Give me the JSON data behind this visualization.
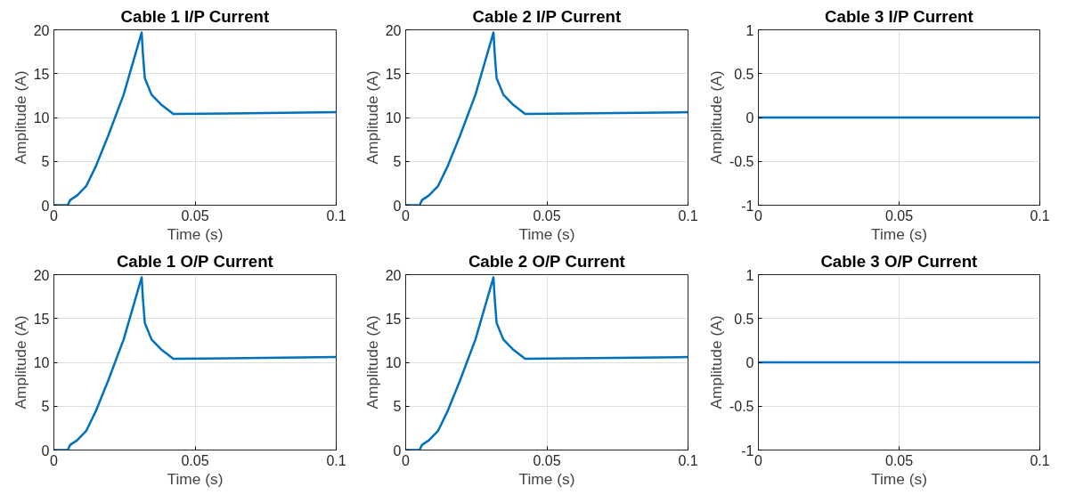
{
  "chart_data": [
    {
      "type": "line",
      "title": "Cable 1 I/P Current",
      "xlabel": "Time (s)",
      "ylabel": "Amplitude (A)",
      "x": [
        0,
        0.0049,
        0.0058,
        0.0082,
        0.0115,
        0.0148,
        0.0192,
        0.0247,
        0.0311,
        0.0315,
        0.0322,
        0.0346,
        0.0379,
        0.0423,
        0.1
      ],
      "series": [
        {
          "color": "#0072bd",
          "values": [
            0,
            0,
            0.6,
            1.1,
            2.2,
            4.4,
            7.9,
            12.6,
            19.7,
            17.4,
            14.5,
            12.6,
            11.5,
            10.4,
            10.6
          ]
        }
      ],
      "xlim": [
        0,
        0.1
      ],
      "xticks": [
        0,
        0.05,
        0.1
      ],
      "ylim": [
        0,
        20
      ],
      "yticks": [
        0,
        5,
        10,
        15,
        20
      ],
      "grid": true
    },
    {
      "type": "line",
      "title": "Cable 2 I/P Current",
      "xlabel": "Time (s)",
      "ylabel": "Amplitude (A)",
      "x": [
        0,
        0.0049,
        0.0058,
        0.0082,
        0.0115,
        0.0148,
        0.0192,
        0.0247,
        0.0311,
        0.0315,
        0.0322,
        0.0346,
        0.0379,
        0.0423,
        0.1
      ],
      "series": [
        {
          "color": "#0072bd",
          "values": [
            0,
            0,
            0.6,
            1.1,
            2.2,
            4.4,
            7.9,
            12.6,
            19.7,
            17.4,
            14.5,
            12.6,
            11.5,
            10.4,
            10.6
          ]
        }
      ],
      "xlim": [
        0,
        0.1
      ],
      "xticks": [
        0,
        0.05,
        0.1
      ],
      "ylim": [
        0,
        20
      ],
      "yticks": [
        0,
        5,
        10,
        15,
        20
      ],
      "grid": true
    },
    {
      "type": "line",
      "title": "Cable 3 I/P Current",
      "xlabel": "Time (s)",
      "ylabel": "Amplitude (A)",
      "x": [
        0,
        0.1
      ],
      "series": [
        {
          "color": "#0072bd",
          "values": [
            0,
            0
          ]
        }
      ],
      "xlim": [
        0,
        0.1
      ],
      "xticks": [
        0,
        0.05,
        0.1
      ],
      "ylim": [
        -1,
        1
      ],
      "yticks": [
        -1,
        -0.5,
        0,
        0.5,
        1
      ],
      "grid": true
    },
    {
      "type": "line",
      "title": "Cable 1 O/P Current",
      "xlabel": "Time (s)",
      "ylabel": "Amplitude (A)",
      "x": [
        0,
        0.0049,
        0.0058,
        0.0082,
        0.0115,
        0.0148,
        0.0192,
        0.0247,
        0.0311,
        0.0315,
        0.0322,
        0.0346,
        0.0379,
        0.0423,
        0.1
      ],
      "series": [
        {
          "color": "#0072bd",
          "values": [
            0,
            0,
            0.6,
            1.1,
            2.2,
            4.4,
            7.9,
            12.6,
            19.7,
            17.4,
            14.5,
            12.6,
            11.5,
            10.4,
            10.6
          ]
        }
      ],
      "xlim": [
        0,
        0.1
      ],
      "xticks": [
        0,
        0.05,
        0.1
      ],
      "ylim": [
        0,
        20
      ],
      "yticks": [
        0,
        5,
        10,
        15,
        20
      ],
      "grid": true
    },
    {
      "type": "line",
      "title": "Cable 2 O/P Current",
      "xlabel": "Time (s)",
      "ylabel": "Amplitude (A)",
      "x": [
        0,
        0.0049,
        0.0058,
        0.0082,
        0.0115,
        0.0148,
        0.0192,
        0.0247,
        0.0311,
        0.0315,
        0.0322,
        0.0346,
        0.0379,
        0.0423,
        0.1
      ],
      "series": [
        {
          "color": "#0072bd",
          "values": [
            0,
            0,
            0.6,
            1.1,
            2.2,
            4.4,
            7.9,
            12.6,
            19.7,
            17.4,
            14.5,
            12.6,
            11.5,
            10.4,
            10.6
          ]
        }
      ],
      "xlim": [
        0,
        0.1
      ],
      "xticks": [
        0,
        0.05,
        0.1
      ],
      "ylim": [
        0,
        20
      ],
      "yticks": [
        0,
        5,
        10,
        15,
        20
      ],
      "grid": true
    },
    {
      "type": "line",
      "title": "Cable 3 O/P Current",
      "xlabel": "Time (s)",
      "ylabel": "Amplitude (A)",
      "x": [
        0,
        0.1
      ],
      "series": [
        {
          "color": "#0072bd",
          "values": [
            0,
            0
          ]
        }
      ],
      "xlim": [
        0,
        0.1
      ],
      "xticks": [
        0,
        0.05,
        0.1
      ],
      "ylim": [
        -1,
        1
      ],
      "yticks": [
        -1,
        -0.5,
        0,
        0.5,
        1
      ],
      "grid": true
    }
  ]
}
